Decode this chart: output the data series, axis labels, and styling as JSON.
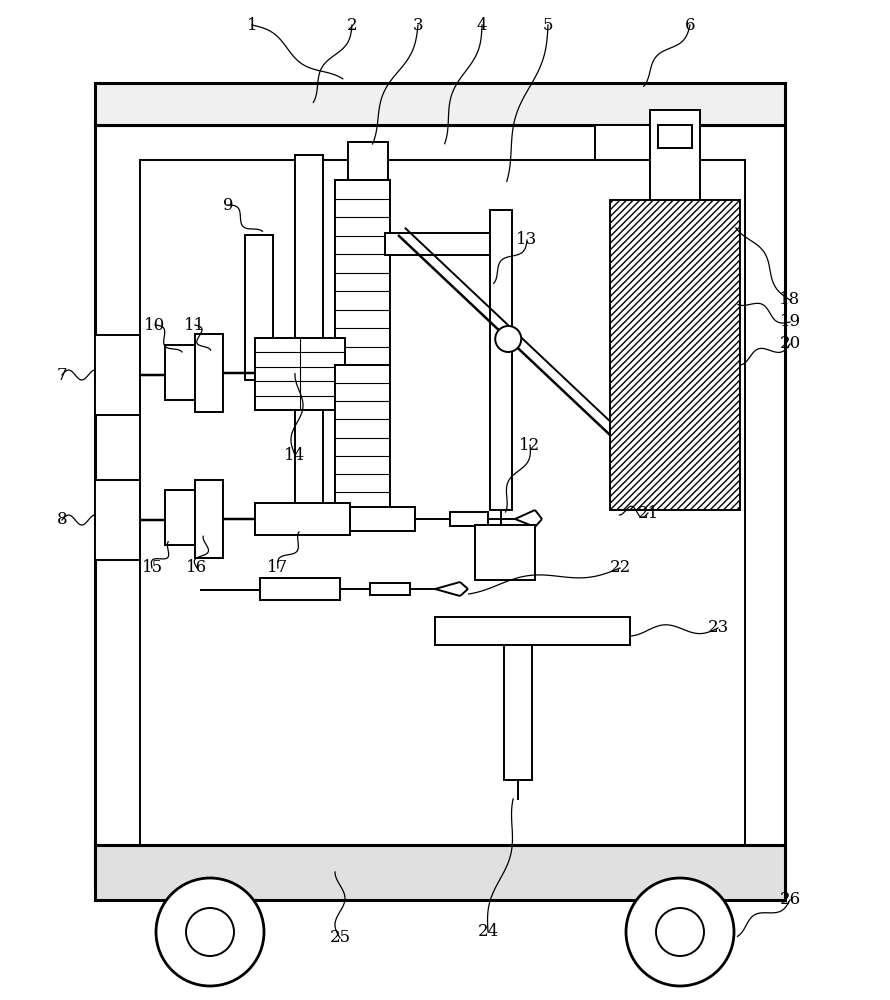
{
  "bg_color": "#ffffff",
  "line_color": "#000000",
  "fig_width": 8.9,
  "fig_height": 10.0,
  "lw_heavy": 2.2,
  "lw_med": 1.4,
  "lw_thin": 0.8,
  "font_size": 12
}
